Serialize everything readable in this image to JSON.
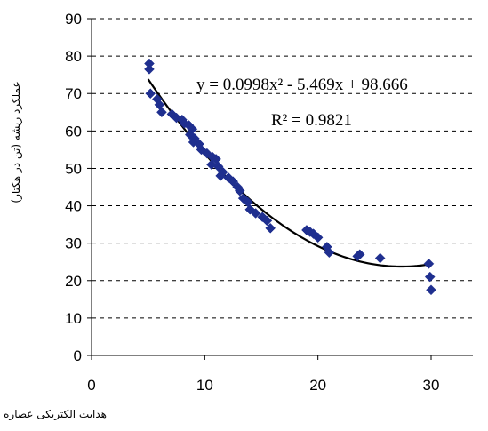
{
  "chart_data": {
    "type": "scatter",
    "title": "",
    "xlabel": "هدایت الکتریکی عصاره اشباع خاک (دسی زیمینس بر متر)",
    "ylabel": "عملکرد ریشه (تن در هکتار)",
    "xlim": [
      0,
      30
    ],
    "ylim": [
      0,
      90
    ],
    "x_ticks": [
      "0",
      "10",
      "20",
      "30"
    ],
    "y_ticks": [
      "0",
      "10",
      "20",
      "30",
      "40",
      "50",
      "60",
      "70",
      "80",
      "90"
    ],
    "grid": "horizontal dashed",
    "legend": "none",
    "marker_color": "#1f2f8f",
    "trendline_color": "#000000",
    "trendline": {
      "equation": "y = 0.0998x² - 5.469x + 98.666",
      "r_squared": "R² = 0.9821",
      "coefficients": [
        0.0998,
        -5.469,
        98.666
      ],
      "x_range": [
        5,
        30
      ]
    },
    "series": [
      {
        "points": [
          [
            5.1,
            78
          ],
          [
            5.1,
            76.5
          ],
          [
            5.2,
            70
          ],
          [
            5.8,
            68.5
          ],
          [
            6,
            67
          ],
          [
            6.2,
            65
          ],
          [
            7.1,
            64.5
          ],
          [
            7.5,
            63.5
          ],
          [
            8,
            63
          ],
          [
            8.2,
            62
          ],
          [
            8.6,
            61.5
          ],
          [
            8.9,
            60.5
          ],
          [
            8.7,
            59
          ],
          [
            9.1,
            58
          ],
          [
            9,
            57
          ],
          [
            9.5,
            56.5
          ],
          [
            9.7,
            55
          ],
          [
            10.2,
            54
          ],
          [
            10.7,
            53
          ],
          [
            11,
            52.5
          ],
          [
            10.6,
            51
          ],
          [
            11.2,
            50.5
          ],
          [
            11.6,
            49
          ],
          [
            11.4,
            48
          ],
          [
            12.1,
            47.5
          ],
          [
            12.5,
            46.5
          ],
          [
            12.9,
            45
          ],
          [
            13.1,
            44
          ],
          [
            13.4,
            42
          ],
          [
            13.8,
            41
          ],
          [
            14,
            39
          ],
          [
            14.5,
            38
          ],
          [
            15.1,
            37
          ],
          [
            15.5,
            36
          ],
          [
            15.8,
            34
          ],
          [
            19,
            33.5
          ],
          [
            19.3,
            33
          ],
          [
            19.6,
            32.5
          ],
          [
            20,
            31.5
          ],
          [
            20.8,
            29
          ],
          [
            21,
            27.5
          ],
          [
            23.7,
            27
          ],
          [
            23.5,
            26.5
          ],
          [
            25.5,
            26
          ],
          [
            29.8,
            24.5
          ],
          [
            29.9,
            21
          ],
          [
            30,
            17.5
          ]
        ]
      }
    ]
  }
}
